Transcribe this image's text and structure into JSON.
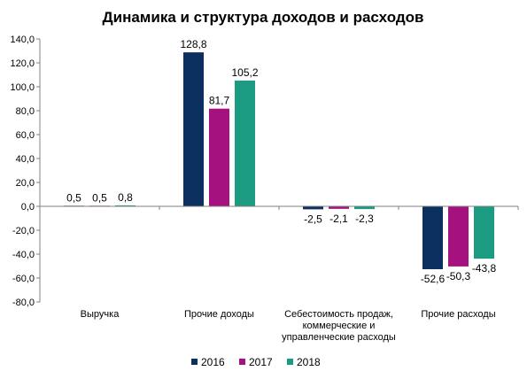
{
  "chart_data": {
    "type": "bar",
    "title": "Динамика и структура доходов и расходов",
    "xlabel": "",
    "ylabel": "",
    "ylim": [
      -80,
      140
    ],
    "yticks": [
      140,
      120,
      100,
      80,
      60,
      40,
      20,
      0,
      -20,
      -40,
      -60,
      -80
    ],
    "ytick_labels": [
      "140,0",
      "120,0",
      "100,0",
      "80,0",
      "60,0",
      "40,0",
      "20,0",
      "0,0",
      "-20,0",
      "-40,0",
      "-60,0",
      "-80,0"
    ],
    "categories": [
      [
        "Выручка"
      ],
      [
        "Прочие доходы"
      ],
      [
        "Себестоимость продаж,",
        "коммерческие и",
        "управленческие расходы"
      ],
      [
        "Прочие расходы"
      ]
    ],
    "series": [
      {
        "name": "2016",
        "color": "#0b2f5e",
        "values": [
          0.5,
          128.8,
          -2.5,
          -52.6
        ],
        "labels": [
          "0,5",
          "128,8",
          "-2,5",
          "-52,6"
        ]
      },
      {
        "name": "2017",
        "color": "#a5127f",
        "values": [
          0.5,
          81.7,
          -2.1,
          -50.3
        ],
        "labels": [
          "0,5",
          "81,7",
          "-2,1",
          "-50,3"
        ]
      },
      {
        "name": "2018",
        "color": "#1a9b82",
        "values": [
          0.8,
          105.2,
          -2.3,
          -43.8
        ],
        "labels": [
          "0,8",
          "105,2",
          "-2,3",
          "-43,8"
        ]
      }
    ],
    "grid": false,
    "legend_position": "bottom"
  }
}
